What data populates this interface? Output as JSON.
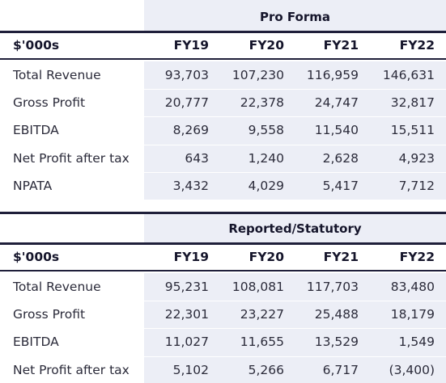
{
  "tables": [
    {
      "group_title": "Pro Forma",
      "header": [
        "$'000s",
        "FY19",
        "FY20",
        "FY21",
        "FY22"
      ],
      "rows": [
        [
          "Total Revenue",
          "93,703",
          "107,230",
          "116,959",
          "146,631"
        ],
        [
          "Gross Profit",
          "20,777",
          "22,378",
          "24,747",
          "32,817"
        ],
        [
          "EBITDA",
          "8,269",
          "9,558",
          "11,540",
          "15,511"
        ],
        [
          "Net Profit after tax",
          "643",
          "1,240",
          "2,628",
          "4,923"
        ],
        [
          "NPATA",
          "3,432",
          "4,029",
          "5,417",
          "7,712"
        ]
      ]
    },
    {
      "group_title": "Reported/Statutory",
      "header": [
        "$'000s",
        "FY19",
        "FY20",
        "FY21",
        "FY22"
      ],
      "rows": [
        [
          "Total Revenue",
          "95,231",
          "108,081",
          "117,703",
          "83,480"
        ],
        [
          "Gross Profit",
          "22,301",
          "23,227",
          "25,488",
          "18,179"
        ],
        [
          "EBITDA",
          "11,027",
          "11,655",
          "13,529",
          "1,549"
        ],
        [
          "Net Profit after tax",
          "5,102",
          "5,266",
          "6,717",
          "(3,400)"
        ]
      ]
    }
  ]
}
